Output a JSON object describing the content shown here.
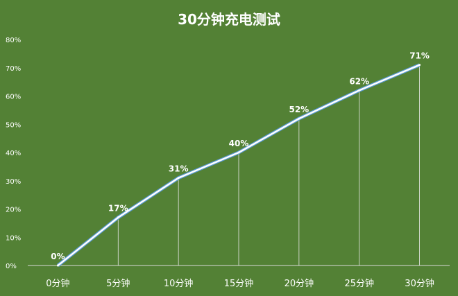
{
  "chart_data": {
    "type": "line",
    "title": "30分钟充电测试",
    "xlabel": "",
    "ylabel": "",
    "categories": [
      "0分钟",
      "5分钟",
      "10分钟",
      "15分钟",
      "20分钟",
      "25分钟",
      "30分钟"
    ],
    "series": [
      {
        "values": [
          0,
          17,
          31,
          40,
          52,
          62,
          71
        ]
      }
    ],
    "data_labels": [
      "0%",
      "17%",
      "31%",
      "40%",
      "52%",
      "62%",
      "71%"
    ],
    "ylim": [
      0,
      80
    ],
    "yticks": [
      "0%",
      "10%",
      "20%",
      "30%",
      "40%",
      "50%",
      "60%",
      "70%",
      "80%"
    ],
    "grid": false,
    "drop_lines": true,
    "colors": {
      "background": "#538135",
      "line": "#ffffff",
      "line_outline": "#5b9bd5",
      "text": "#ffffff"
    }
  }
}
